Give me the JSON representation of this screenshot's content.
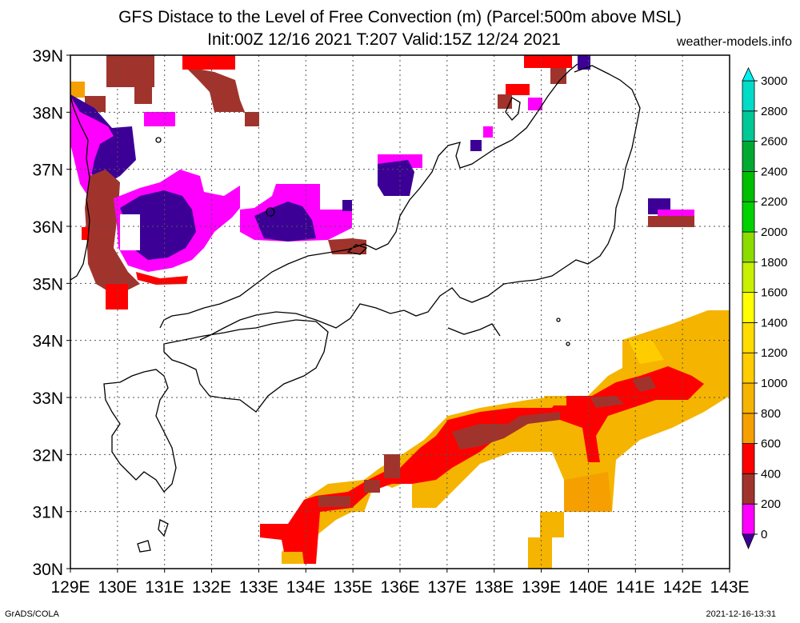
{
  "title_line1": "GFS Distace to the Level of Free Convection (m) (Parcel:500m above MSL)",
  "title_line2": "Init:00Z 12/16 2021 T:207 Valid:15Z 12/24 2021",
  "site": "weather-models.info",
  "footer_left": "GrADS/COLA",
  "footer_right": "2021-12-16-13:31",
  "map": {
    "lon_range": [
      129,
      143
    ],
    "lat_range": [
      30,
      39
    ],
    "lon_ticks": [
      "129E",
      "130E",
      "131E",
      "132E",
      "133E",
      "134E",
      "135E",
      "136E",
      "137E",
      "138E",
      "139E",
      "140E",
      "141E",
      "142E",
      "143E"
    ],
    "lat_ticks": [
      "30N",
      "31N",
      "32N",
      "33N",
      "34N",
      "35N",
      "36N",
      "37N",
      "38N",
      "39N"
    ],
    "grid": "dotted"
  },
  "colorbar": {
    "labels": [
      "0",
      "200",
      "400",
      "600",
      "800",
      "1000",
      "1200",
      "1400",
      "1600",
      "1800",
      "2000",
      "2200",
      "2400",
      "2600",
      "2800",
      "3000"
    ],
    "colors": {
      "below_min": "#3c0096",
      "c0_200": "#ff00ff",
      "c200_400": "#a0342d",
      "c400_600": "#ff0000",
      "c600_800": "#f5a000",
      "c800_1000": "#f5b400",
      "c1000_1200": "#ffcc00",
      "c1200_1400": "#ffdc00",
      "c1400_1600": "#ffff00",
      "c1600_1800": "#c8f000",
      "c1800_2000": "#8cdc00",
      "c2000_2200": "#00d200",
      "c2200_2400": "#00be00",
      "c2400_2600": "#00aa32",
      "c2600_2800": "#00c896",
      "c2800_3000": "#00dcc8",
      "above_max": "#00f0f0"
    }
  }
}
